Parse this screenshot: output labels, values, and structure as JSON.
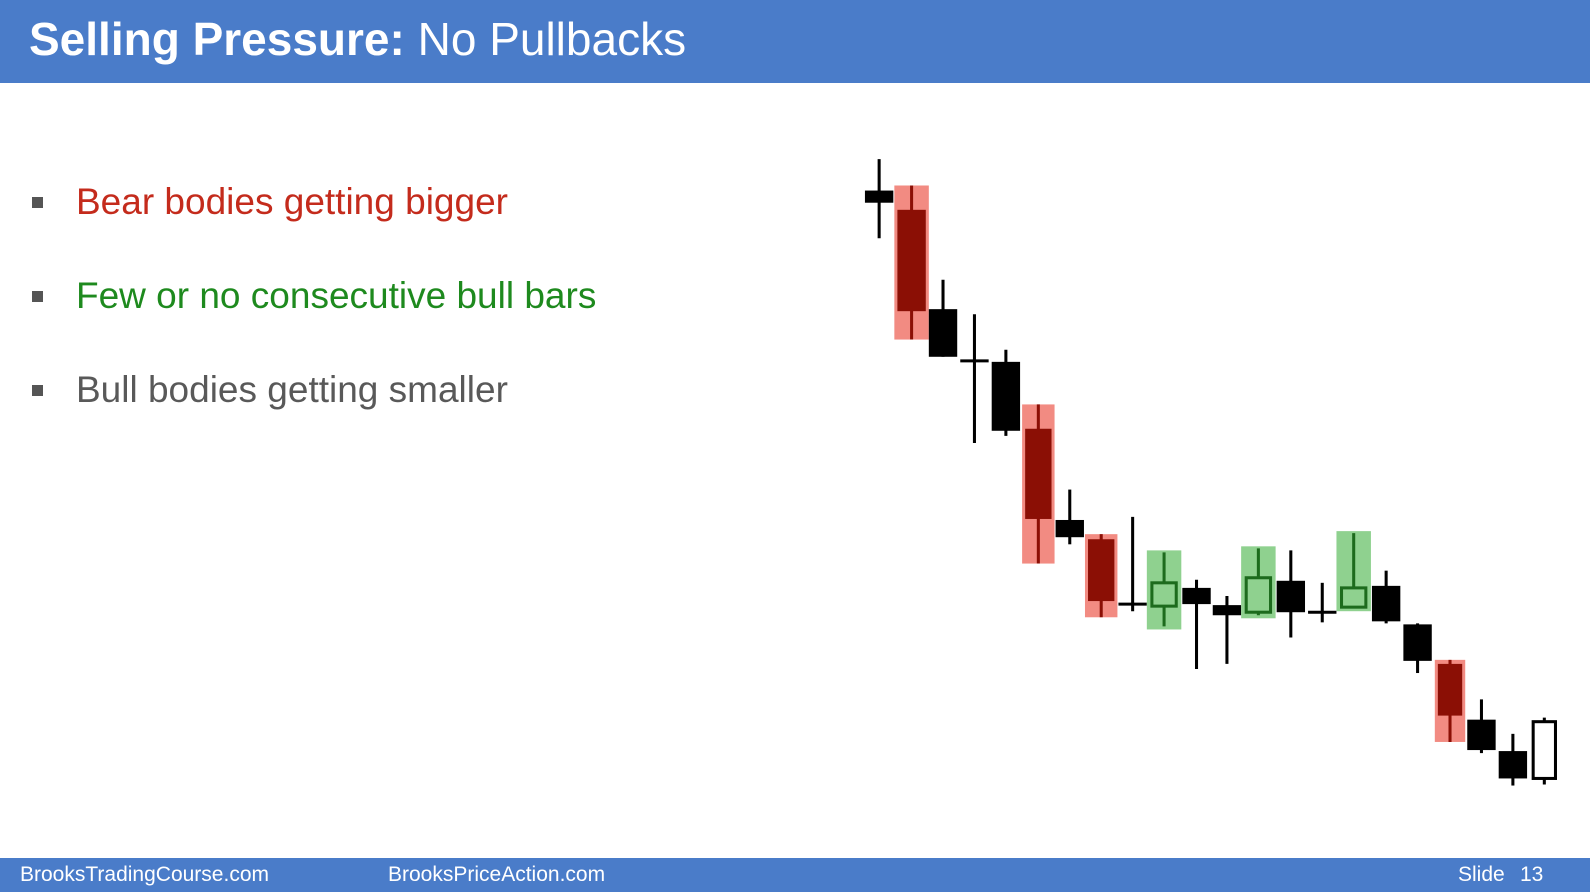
{
  "header": {
    "title_bold": "Selling Pressure:",
    "title_rest": "No Pullbacks"
  },
  "bullets": [
    {
      "text": "Bear bodies getting bigger",
      "color": "#c42b1c"
    },
    {
      "text": "Few or no consecutive bull bars",
      "color": "#1e8a1e"
    },
    {
      "text": "Bull bodies getting smaller",
      "color": "#595959"
    }
  ],
  "footer": {
    "left": "BrooksTradingCourse.com",
    "middle": "BrooksPriceAction.com",
    "slide_label": "Slide",
    "slide_number": 13
  }
}
